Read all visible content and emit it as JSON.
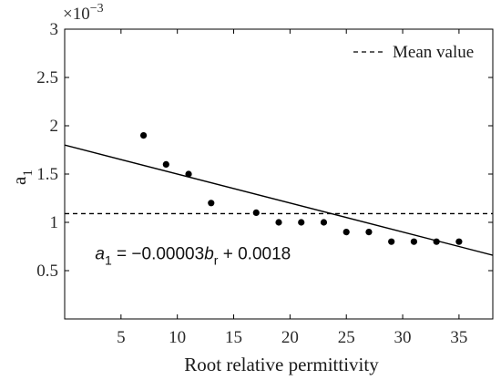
{
  "chart_data": {
    "type": "scatter",
    "xlabel": "Root relative permittivity",
    "ylabel": "a",
    "ylabel_subscript": "1",
    "y_multiplier_text": "×10",
    "y_multiplier_exponent": "−3",
    "xlim": [
      0,
      38
    ],
    "ylim": [
      0,
      3
    ],
    "x_ticks": [
      5,
      10,
      15,
      20,
      25,
      30,
      35
    ],
    "x_tick_labels": [
      "5",
      "10",
      "15",
      "20",
      "25",
      "30",
      "35"
    ],
    "y_ticks": [
      0.5,
      1,
      1.5,
      2,
      2.5,
      3
    ],
    "y_tick_labels": [
      "0.5",
      "1",
      "1.5",
      "2",
      "2.5",
      "3"
    ],
    "grid": false,
    "legend_position": "top-right",
    "series": [
      {
        "kind": "scatter",
        "color": "#000000",
        "points": [
          {
            "x": 7,
            "y": 1.9
          },
          {
            "x": 9,
            "y": 1.6
          },
          {
            "x": 11,
            "y": 1.5
          },
          {
            "x": 13,
            "y": 1.2
          },
          {
            "x": 17,
            "y": 1.1
          },
          {
            "x": 19,
            "y": 1.0
          },
          {
            "x": 21,
            "y": 1.0
          },
          {
            "x": 23,
            "y": 1.0
          },
          {
            "x": 25,
            "y": 0.9
          },
          {
            "x": 27,
            "y": 0.9
          },
          {
            "x": 29,
            "y": 0.8
          },
          {
            "x": 31,
            "y": 0.8
          },
          {
            "x": 33,
            "y": 0.8
          },
          {
            "x": 35,
            "y": 0.8
          }
        ]
      },
      {
        "kind": "fit-line",
        "color": "#000000",
        "slope": -0.03,
        "intercept": 1.8
      },
      {
        "kind": "mean-line",
        "name": "Mean value",
        "color": "#000000",
        "y": 1.09
      }
    ],
    "annotation": {
      "lhs_var": "a",
      "lhs_sub": "1",
      "middle": " = −0.00003",
      "var": "b",
      "var_sub": "r",
      "rest": " + 0.0018",
      "x": 2.7,
      "y": 0.62
    }
  }
}
